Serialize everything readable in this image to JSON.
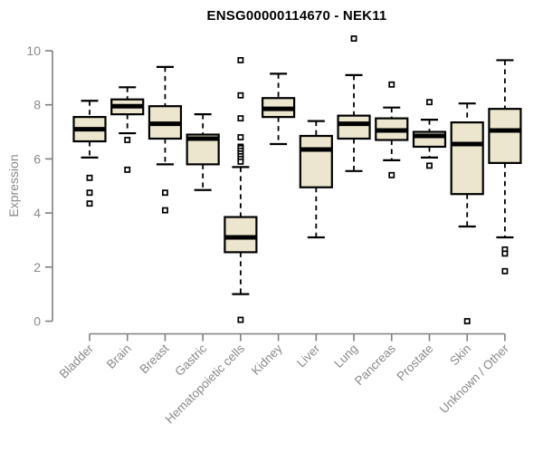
{
  "chart_data": {
    "type": "boxplot",
    "title": "ENSG00000114670 - NEK11",
    "ylabel": "Expression",
    "xlabel": "",
    "ylim": [
      0,
      10
    ],
    "yticks": [
      "0",
      "2",
      "4",
      "6",
      "8",
      "10"
    ],
    "grid": false,
    "legend": null,
    "colors": {
      "box_fill": "#EBE6CD",
      "box_stroke": "#000000",
      "median": "#000000",
      "whisker": "#000000",
      "axis": "#808080",
      "tick_label": "#8a8a8a",
      "title": "#000000",
      "background": "#ffffff"
    },
    "categories": [
      "Bladder",
      "Brain",
      "Breast",
      "Gastric",
      "Hematopoietic cells",
      "Kidney",
      "Liver",
      "Lung",
      "Pancreas",
      "Prostate",
      "Skin",
      "Unknown / Other"
    ],
    "boxes": [
      {
        "category": "Bladder",
        "whisker_low": 6.05,
        "q1": 6.65,
        "median": 7.1,
        "q3": 7.55,
        "whisker_high": 8.15,
        "outliers": [
          5.3,
          4.75,
          4.35
        ]
      },
      {
        "category": "Brain",
        "whisker_low": 6.95,
        "q1": 7.65,
        "median": 7.95,
        "q3": 8.2,
        "whisker_high": 8.65,
        "outliers": [
          6.7,
          5.6
        ]
      },
      {
        "category": "Breast",
        "whisker_low": 5.8,
        "q1": 6.75,
        "median": 7.3,
        "q3": 7.95,
        "whisker_high": 9.4,
        "outliers": [
          4.75,
          4.1
        ]
      },
      {
        "category": "Gastric",
        "whisker_low": 4.85,
        "q1": 5.8,
        "median": 6.75,
        "q3": 6.9,
        "whisker_high": 7.65,
        "outliers": []
      },
      {
        "category": "Hematopoietic cells",
        "whisker_low": 1.0,
        "q1": 2.55,
        "median": 3.1,
        "q3": 3.85,
        "whisker_high": 5.7,
        "outliers": [
          9.65,
          8.35,
          7.5,
          6.8,
          6.45,
          6.4,
          6.3,
          6.2,
          6.1,
          6.0,
          5.9,
          0.05
        ]
      },
      {
        "category": "Kidney",
        "whisker_low": 6.55,
        "q1": 7.55,
        "median": 7.85,
        "q3": 8.25,
        "whisker_high": 9.15,
        "outliers": []
      },
      {
        "category": "Liver",
        "whisker_low": 3.1,
        "q1": 4.95,
        "median": 6.35,
        "q3": 6.85,
        "whisker_high": 7.4,
        "outliers": []
      },
      {
        "category": "Lung",
        "whisker_low": 5.55,
        "q1": 6.75,
        "median": 7.3,
        "q3": 7.6,
        "whisker_high": 9.1,
        "outliers": [
          10.45
        ]
      },
      {
        "category": "Pancreas",
        "whisker_low": 5.95,
        "q1": 6.7,
        "median": 7.05,
        "q3": 7.5,
        "whisker_high": 7.9,
        "outliers": [
          8.75,
          5.4
        ]
      },
      {
        "category": "Prostate",
        "whisker_low": 6.05,
        "q1": 6.45,
        "median": 6.85,
        "q3": 7.0,
        "whisker_high": 7.45,
        "outliers": [
          8.1,
          5.75
        ]
      },
      {
        "category": "Skin",
        "whisker_low": 3.5,
        "q1": 4.7,
        "median": 6.55,
        "q3": 7.35,
        "whisker_high": 8.05,
        "outliers": [
          0.0
        ]
      },
      {
        "category": "Unknown / Other",
        "whisker_low": 3.1,
        "q1": 5.85,
        "median": 7.05,
        "q3": 7.85,
        "whisker_high": 9.65,
        "outliers": [
          2.65,
          2.5,
          1.85
        ]
      }
    ]
  }
}
